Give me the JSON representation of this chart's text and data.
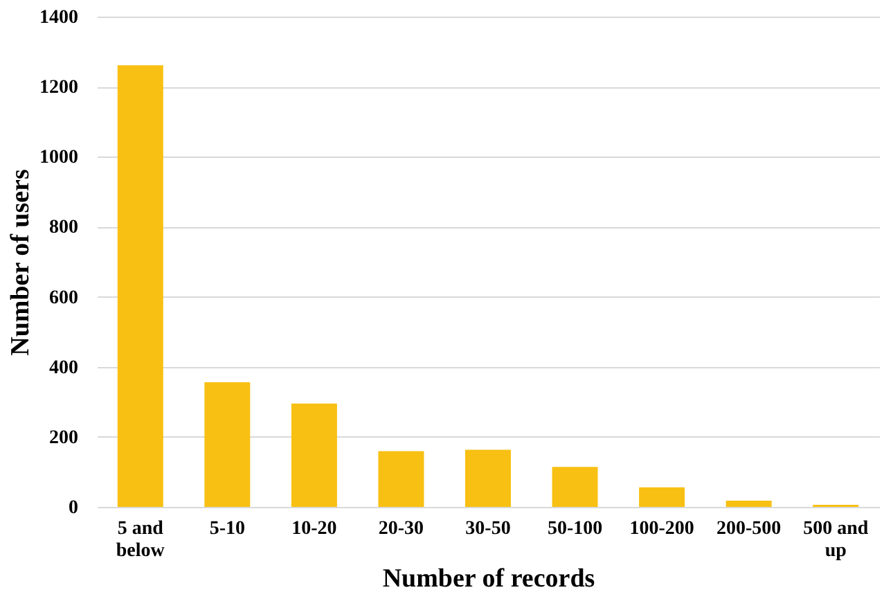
{
  "chart_data": {
    "type": "bar",
    "xlabel": "Number of records",
    "ylabel": "Number of users",
    "categories": [
      "5 and below",
      "5-10",
      "10-20",
      "20-30",
      "30-50",
      "50-100",
      "100-200",
      "200-500",
      "500 and up"
    ],
    "values": [
      1261,
      356,
      295,
      159,
      163,
      114,
      56,
      18,
      6
    ],
    "color": "#f8c013",
    "ylim": [
      0,
      1400
    ],
    "yticks": [
      0,
      200,
      400,
      600,
      800,
      1000,
      1200,
      1400
    ],
    "grid": "y"
  }
}
